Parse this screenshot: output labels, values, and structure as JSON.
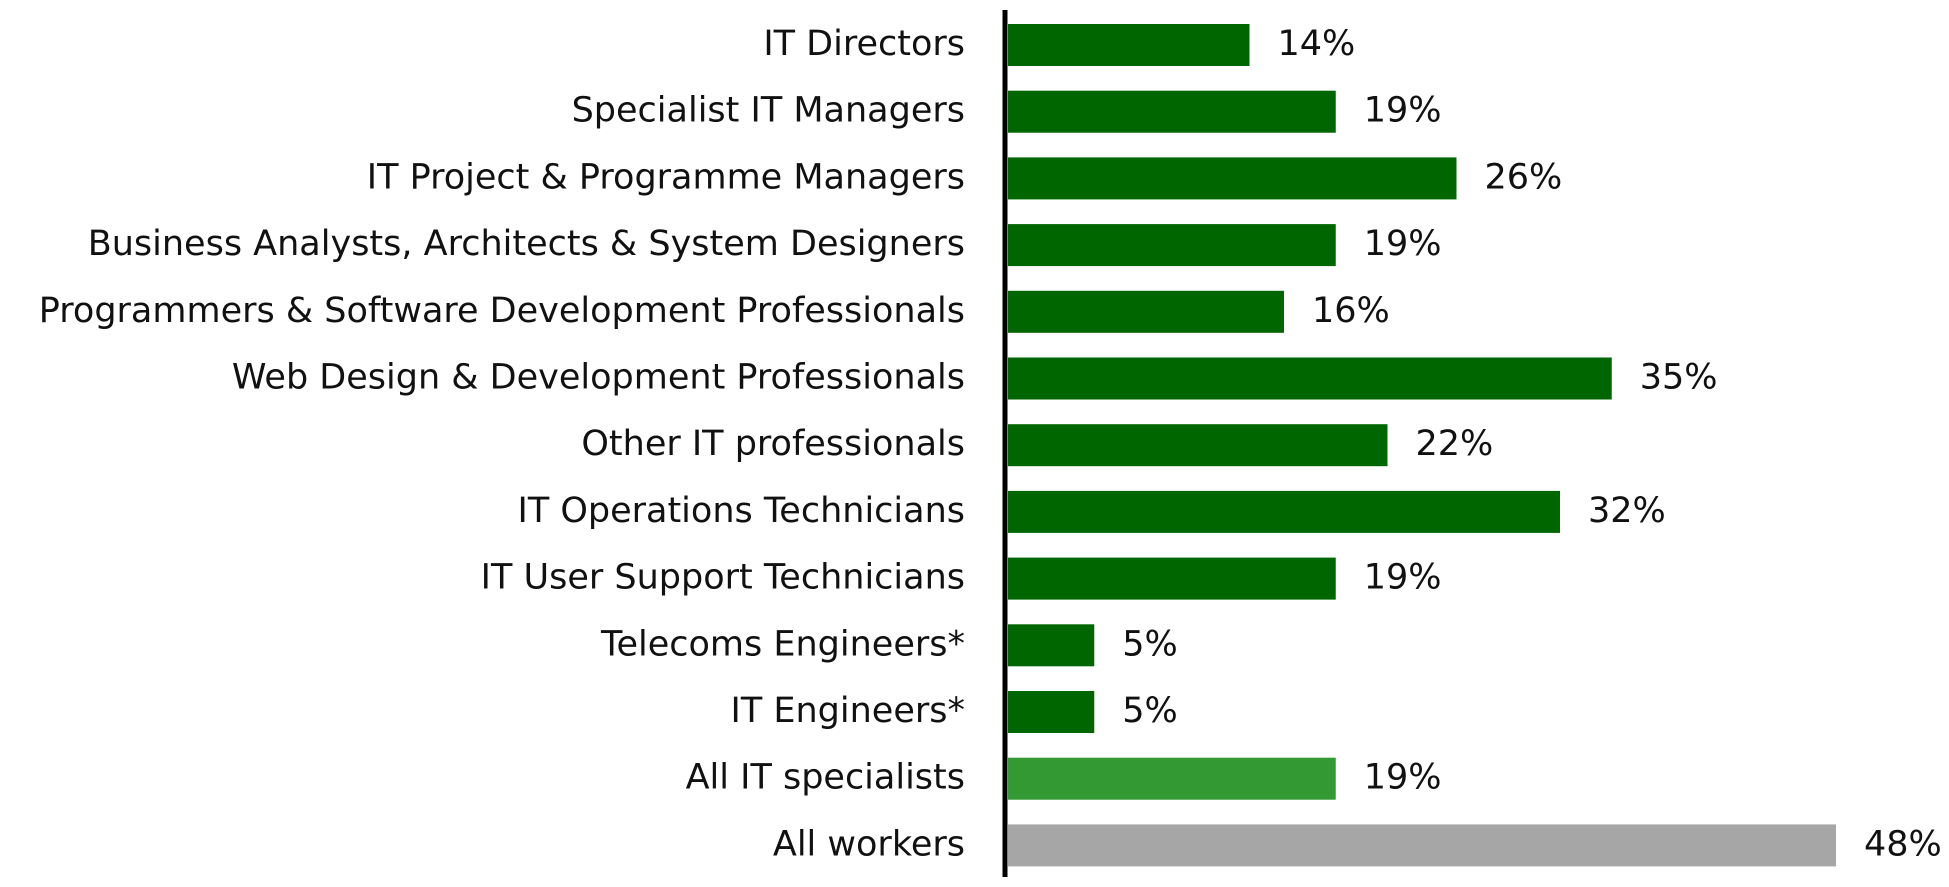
{
  "chart_data": {
    "type": "bar",
    "orientation": "horizontal",
    "title": "",
    "xlabel": "",
    "ylabel": "",
    "grid": false,
    "legend": "none",
    "xlim": [
      0,
      48
    ],
    "categories": [
      "IT Directors",
      "Specialist IT Managers",
      "IT Project & Programme Managers",
      "Business Analysts, Architects & System Designers",
      "Programmers & Software Development Professionals",
      "Web Design & Development Professionals",
      "Other IT professionals",
      "IT Operations Technicians",
      "IT User Support Technicians",
      "Telecoms Engineers*",
      "IT Engineers*",
      "All IT specialists",
      "All workers"
    ],
    "values": [
      14,
      19,
      26,
      19,
      16,
      35,
      22,
      32,
      19,
      5,
      5,
      19,
      48
    ],
    "value_labels": [
      "14%",
      "19%",
      "26%",
      "19%",
      "16%",
      "35%",
      "22%",
      "32%",
      "19%",
      "5%",
      "5%",
      "19%",
      "48%"
    ],
    "bar_colors": [
      "#006600",
      "#006600",
      "#006600",
      "#006600",
      "#006600",
      "#006600",
      "#006600",
      "#006600",
      "#006600",
      "#006600",
      "#006600",
      "#339933",
      "#a6a6a6"
    ],
    "axis_color": "#000000"
  }
}
